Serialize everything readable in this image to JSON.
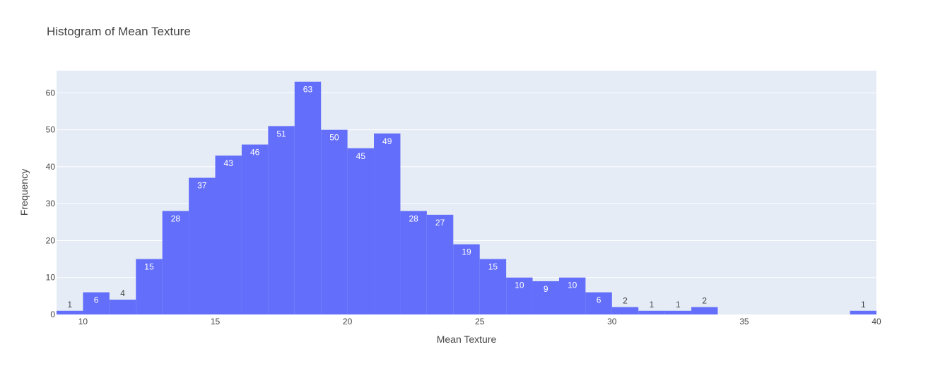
{
  "chart_data": {
    "type": "bar",
    "title": "Histogram of Mean Texture",
    "xlabel": "Mean Texture",
    "ylabel": "Frequency",
    "xlim": [
      9,
      40
    ],
    "ylim": [
      0,
      66
    ],
    "xticks": [
      10,
      15,
      20,
      25,
      30,
      35,
      40
    ],
    "yticks": [
      0,
      10,
      20,
      30,
      40,
      50,
      60
    ],
    "grid": true,
    "bar_color": "#636efa",
    "plot_background": "#e5ecf6",
    "bins": [
      {
        "x0": 9,
        "x1": 10,
        "value": 1
      },
      {
        "x0": 10,
        "x1": 11,
        "value": 6
      },
      {
        "x0": 11,
        "x1": 12,
        "value": 4
      },
      {
        "x0": 12,
        "x1": 13,
        "value": 15
      },
      {
        "x0": 13,
        "x1": 14,
        "value": 28
      },
      {
        "x0": 14,
        "x1": 15,
        "value": 37
      },
      {
        "x0": 15,
        "x1": 16,
        "value": 43
      },
      {
        "x0": 16,
        "x1": 17,
        "value": 46
      },
      {
        "x0": 17,
        "x1": 18,
        "value": 51
      },
      {
        "x0": 18,
        "x1": 19,
        "value": 63
      },
      {
        "x0": 19,
        "x1": 20,
        "value": 50
      },
      {
        "x0": 20,
        "x1": 21,
        "value": 45
      },
      {
        "x0": 21,
        "x1": 22,
        "value": 49
      },
      {
        "x0": 22,
        "x1": 23,
        "value": 28
      },
      {
        "x0": 23,
        "x1": 24,
        "value": 27
      },
      {
        "x0": 24,
        "x1": 25,
        "value": 19
      },
      {
        "x0": 25,
        "x1": 26,
        "value": 15
      },
      {
        "x0": 26,
        "x1": 27,
        "value": 10
      },
      {
        "x0": 27,
        "x1": 28,
        "value": 9
      },
      {
        "x0": 28,
        "x1": 29,
        "value": 10
      },
      {
        "x0": 29,
        "x1": 30,
        "value": 6
      },
      {
        "x0": 30,
        "x1": 31,
        "value": 2
      },
      {
        "x0": 31,
        "x1": 32,
        "value": 1
      },
      {
        "x0": 32,
        "x1": 33,
        "value": 1
      },
      {
        "x0": 33,
        "x1": 34,
        "value": 2
      },
      {
        "x0": 39,
        "x1": 40,
        "value": 1
      }
    ]
  }
}
